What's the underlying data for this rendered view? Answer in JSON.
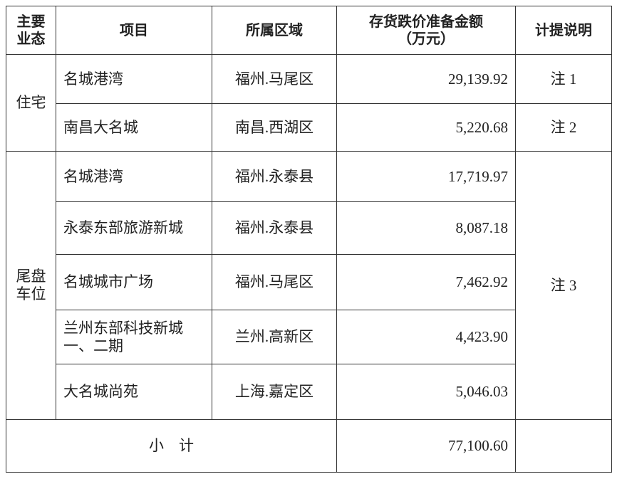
{
  "headers": [
    "主要\n业态",
    "项目",
    "所属区域",
    "存货跌价准备金额\n（万元）",
    "计提说明"
  ],
  "groups": [
    {
      "category": "住宅",
      "rows": [
        {
          "project": "名城港湾",
          "region": "福州.马尾区",
          "amount": "29,139.92",
          "note": "注 1"
        },
        {
          "project": "南昌大名城",
          "region": "南昌.西湖区",
          "amount": "5,220.68",
          "note": "注 2"
        }
      ]
    },
    {
      "category": "尾盘\n车位",
      "note": "注 3",
      "rows": [
        {
          "project": "名城港湾",
          "region": "福州.永泰县",
          "amount": "17,719.97"
        },
        {
          "project": "永泰东部旅游新城",
          "region": "福州.永泰县",
          "amount": "8,087.18"
        },
        {
          "project": "名城城市广场",
          "region": "福州.马尾区",
          "amount": "7,462.92"
        },
        {
          "project": "兰州东部科技新城\n一、二期",
          "region": "兰州.高新区",
          "amount": "4,423.90"
        },
        {
          "project": "大名城尚苑",
          "region": "上海.嘉定区",
          "amount": "5,046.03"
        }
      ]
    }
  ],
  "subtotal": {
    "label": "小　计",
    "amount": "77,100.60",
    "note": ""
  }
}
